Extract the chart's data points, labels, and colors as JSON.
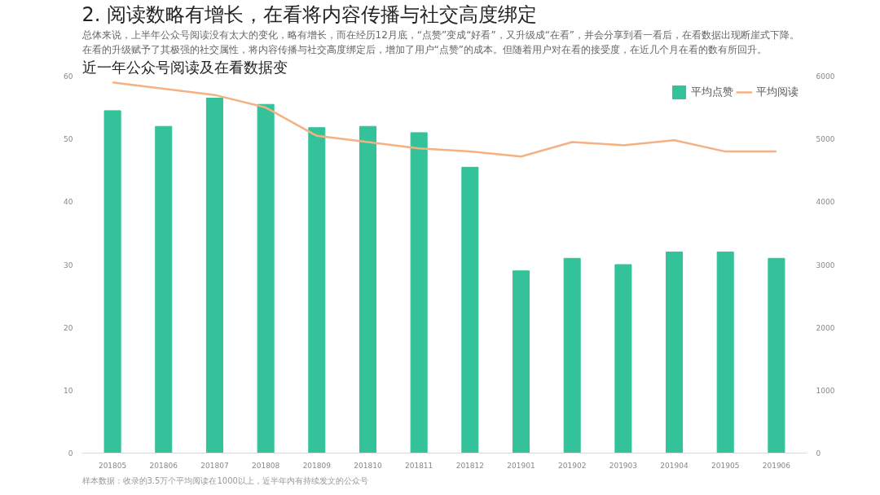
{
  "chart_data": {
    "type": "bar",
    "title": "2. 阅读数略有增长，在看将内容传播与社交高度绑定",
    "subtitle": "近一年公众号阅读及在看数据变",
    "annotations": [
      "总体来说，上半年公众号阅读没有太大的变化，略有增长，而在经历12月底，“点赞”变成“好看”，又升级成“在看”，并会分享到看一看后，在看数据出现断崖式下降。",
      "在看的升级赋予了其极强的社交属性，将内容传播与社交高度绑定后，增加了用户“点赞”的成本。但随着用户对在看的接受度，在近几个月在看的数有所回升。",
      "样本数据：收录的3.5万个平均阅读在1000以上，近半年内有持续发文的公众号"
    ],
    "categories": [
      "201805",
      "201806",
      "201807",
      "201808",
      "201809",
      "201810",
      "201811",
      "201812",
      "201901",
      "201902",
      "201903",
      "201904",
      "201905",
      "201906"
    ],
    "series": [
      {
        "name": "平均点赞",
        "color": "#33c29a",
        "values": [
          54.5,
          52,
          56.5,
          55.5,
          51.8,
          52,
          51,
          45.5,
          29,
          31,
          30,
          32,
          32,
          31
        ]
      },
      {
        "name": "平均阅读",
        "type": "line",
        "axis": "y2",
        "color": "#f4b183",
        "values": [
          5900,
          5800,
          5700,
          5500,
          5050,
          4950,
          4850,
          4800,
          4720,
          4950,
          4900,
          4980,
          4800,
          4800
        ]
      }
    ],
    "ylim": [
      0,
      60
    ],
    "yticks": [
      0,
      10,
      20,
      30,
      40,
      50,
      60
    ],
    "y2lim": [
      0,
      6000
    ],
    "y2ticks": [
      0,
      1000,
      2000,
      3000,
      4000,
      5000,
      6000
    ],
    "grid": false,
    "legend": "top right"
  }
}
